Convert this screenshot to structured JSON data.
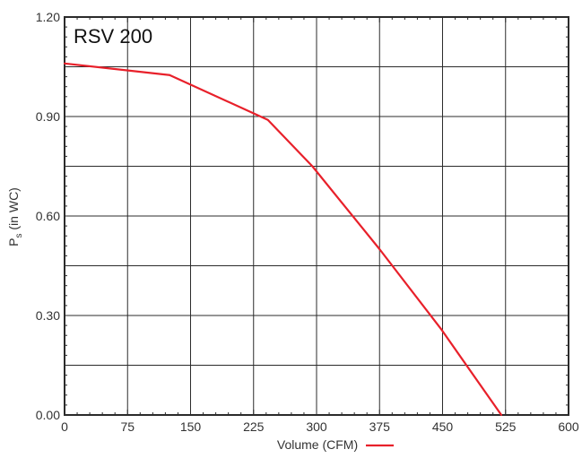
{
  "chart_data": {
    "type": "line",
    "model_label": "RSV 200",
    "xlabel": "Volume (CFM)",
    "ylabel_main": "P",
    "ylabel_sub": "s",
    "ylabel_rest": " (in WC)",
    "xlim": [
      0,
      600
    ],
    "ylim": [
      0,
      1.2
    ],
    "x_ticks": [
      "0",
      "75",
      "150",
      "225",
      "300",
      "375",
      "450",
      "525",
      "600"
    ],
    "y_ticks": [
      "0.00",
      "0.30",
      "0.60",
      "0.90",
      "1.20"
    ],
    "grid": true,
    "legend_placement": "bottom-center",
    "colors": {
      "series": "#e8202a",
      "grid": "#2b2b2b",
      "frame": "#2b2b2b"
    },
    "series": [
      {
        "x": [
          0,
          125,
          242,
          295,
          375,
          448,
          520
        ],
        "y": [
          1.06,
          1.025,
          0.89,
          0.75,
          0.5,
          0.26,
          0.0
        ]
      }
    ]
  }
}
